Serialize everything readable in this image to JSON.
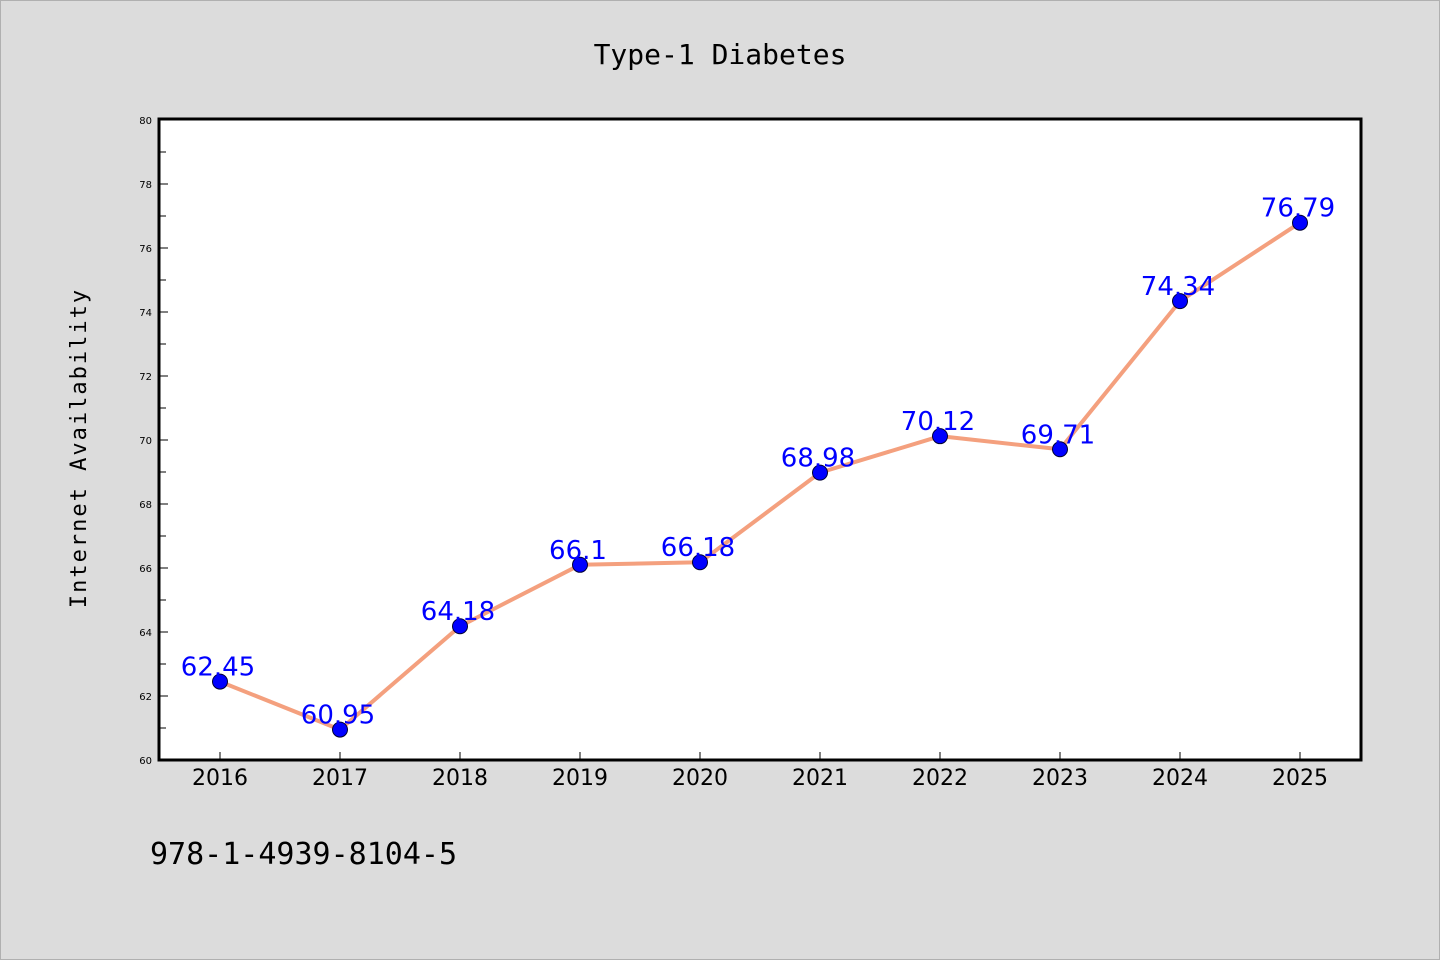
{
  "chart_data": {
    "type": "line",
    "title": "Type-1 Diabetes",
    "xlabel": "",
    "ylabel": "Internet Availability",
    "categories": [
      "2016",
      "2017",
      "2018",
      "2019",
      "2020",
      "2021",
      "2022",
      "2023",
      "2024",
      "2025"
    ],
    "values": [
      62.45,
      60.95,
      64.18,
      66.1,
      66.18,
      68.98,
      70.12,
      69.71,
      74.34,
      76.79
    ],
    "data_labels": [
      "62.45",
      "60.95",
      "64.18",
      "66.1",
      "66.18",
      "68.98",
      "70.12",
      "69.71",
      "74.34",
      "76.79"
    ],
    "ylim": [
      60,
      80
    ],
    "yticks": [
      60,
      62,
      64,
      66,
      68,
      70,
      72,
      74,
      76,
      78,
      80
    ],
    "grid": false,
    "line_color": "#f4a07e",
    "marker_color": "#0000ff",
    "label_color": "#0000ff"
  },
  "footer_text": "978-1-4939-8104-5"
}
